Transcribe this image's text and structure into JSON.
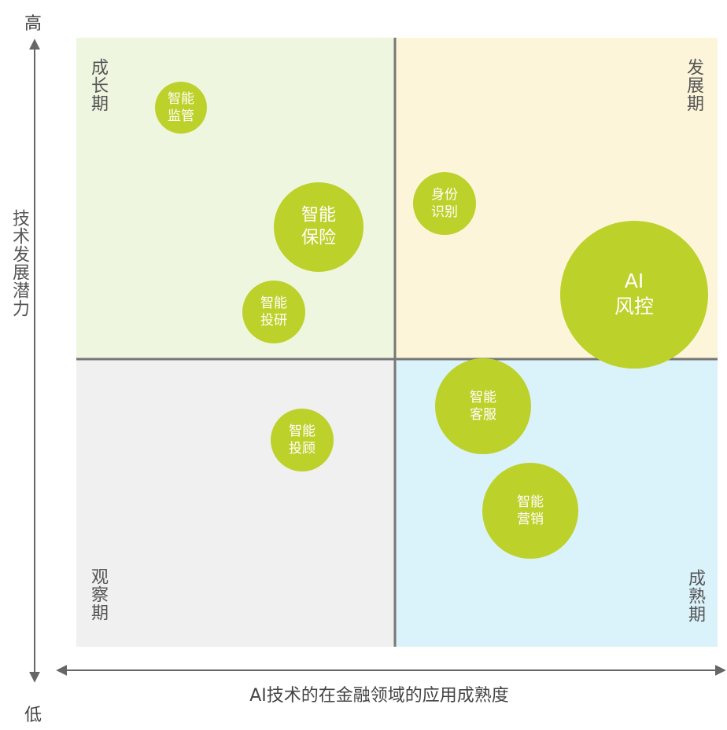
{
  "axis": {
    "top": "高",
    "bottom": "低",
    "y_label": "技术发展潜力",
    "x_label": "AI技术的在金融领域的应用成熟度"
  },
  "quadrants": {
    "top_left": "成长期",
    "top_right": "发展期",
    "bottom_left": "观察期",
    "bottom_right": "成熟期"
  },
  "nodes": [
    {
      "label": [
        "智能",
        "监管"
      ]
    },
    {
      "label": [
        "智能",
        "保险"
      ]
    },
    {
      "label": [
        "智能",
        "投研"
      ]
    },
    {
      "label": [
        "身份",
        "识别"
      ]
    },
    {
      "label": [
        "AI",
        "风控"
      ]
    },
    {
      "label": [
        "智能",
        "客服"
      ]
    },
    {
      "label": [
        "智能",
        "营销"
      ]
    },
    {
      "label": [
        "智能",
        "投顾"
      ]
    }
  ]
}
